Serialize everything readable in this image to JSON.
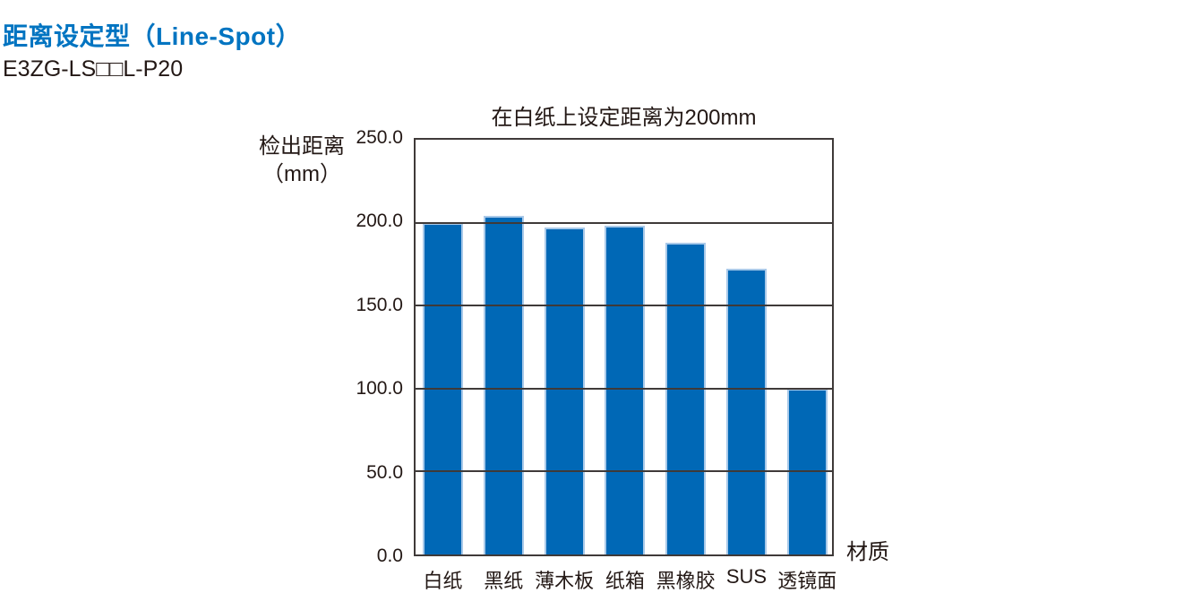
{
  "header": {
    "title": "距离设定型（Line-Spot）",
    "model": "E3ZG-LS□□L-P20"
  },
  "colors": {
    "accent_blue": "#0074c1",
    "bar_fill": "#0068b6",
    "bar_edge": "#a9c9e9",
    "axis_line": "#3f3a39",
    "text": "#231815"
  },
  "chart_data": {
    "type": "bar",
    "title": "在白纸上设定距离为200mm",
    "ylabel": "检出距离（mm）",
    "ylabel_lines": [
      "检出距离",
      "（mm）"
    ],
    "xlabel": "材质",
    "categories": [
      "白纸",
      "黑纸",
      "薄木板",
      "纸箱",
      "黑橡胶",
      "SUS",
      "透镜面"
    ],
    "values": [
      200,
      204,
      197,
      198,
      188,
      172,
      100
    ],
    "ylim": [
      0,
      250
    ],
    "ytick_step": 50,
    "ytick_labels": [
      "0.0",
      "50.0",
      "100.0",
      "150.0",
      "200.0",
      "250.0"
    ],
    "grid": true,
    "legend": false
  }
}
